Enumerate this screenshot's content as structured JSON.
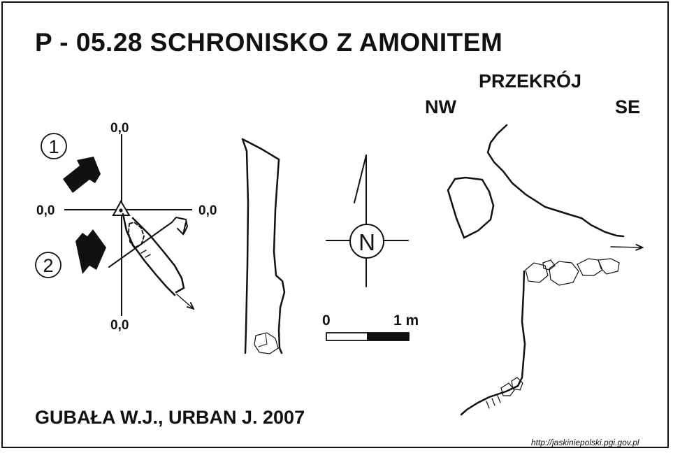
{
  "title": "P - 05.28  SCHRONISKO Z AMONITEM",
  "authors": "GUBAŁA W.J., URBAN J. 2007",
  "section": {
    "label": "PRZEKRÓJ",
    "left": "NW",
    "right": "SE"
  },
  "orientation": {
    "top": "0,0",
    "left": "0,0",
    "right": "0,0",
    "bottom": "0,0",
    "markers": [
      "1",
      "2"
    ]
  },
  "compass": {
    "letter": "N"
  },
  "scale": {
    "start": "0",
    "end": "1 m"
  },
  "source_url": "http://jaskiniepolski.pgi.gov.pl",
  "colors": {
    "ink": "#111111",
    "paper": "#ffffff"
  }
}
